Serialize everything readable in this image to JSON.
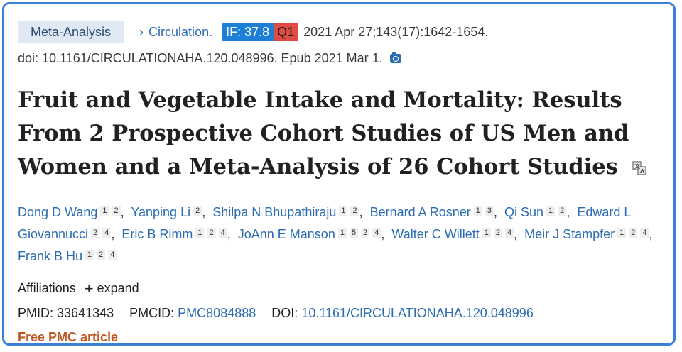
{
  "header": {
    "article_type": "Meta-Analysis",
    "journal": "Circulation.",
    "impact_factor": "IF: 37.8",
    "quartile": "Q1",
    "citation": "2021 Apr 27;143(17):1642-1654.",
    "doi_line": "doi: 10.1161/CIRCULATIONAHA.120.048996. Epub 2021 Mar 1.",
    "camera_icon": "camera-icon",
    "accent": "#2b6cb3",
    "if_color": "#1e7fd6",
    "q_color": "#e04b44"
  },
  "title": "Fruit and Vegetable Intake and Mortality: Results From 2 Prospective Cohort Studies of US Men and Women and a Meta-Analysis of 26 Cohort Studies",
  "translate_icon": "translate-icon",
  "authors": [
    {
      "name": "Dong D Wang",
      "affs": [
        "1",
        "2"
      ]
    },
    {
      "name": "Yanping Li",
      "affs": [
        "2"
      ]
    },
    {
      "name": "Shilpa N Bhupathiraju",
      "affs": [
        "1",
        "2"
      ]
    },
    {
      "name": "Bernard A Rosner",
      "affs": [
        "1",
        "3"
      ]
    },
    {
      "name": "Qi Sun",
      "affs": [
        "1",
        "2"
      ]
    },
    {
      "name": "Edward L Giovannucci",
      "affs": [
        "2",
        "4"
      ]
    },
    {
      "name": "Eric B Rimm",
      "affs": [
        "1",
        "2",
        "4"
      ]
    },
    {
      "name": "JoAnn E Manson",
      "affs": [
        "1",
        "5",
        "2",
        "4"
      ]
    },
    {
      "name": "Walter C Willett",
      "affs": [
        "1",
        "2",
        "4"
      ]
    },
    {
      "name": "Meir J Stampfer",
      "affs": [
        "1",
        "2",
        "4"
      ]
    },
    {
      "name": "Frank B Hu",
      "affs": [
        "1",
        "2",
        "4"
      ]
    }
  ],
  "affiliations": {
    "label": "Affiliations",
    "plus": "+",
    "expand": "expand"
  },
  "ids": {
    "pmid_label": "PMID:",
    "pmid": "33641343",
    "pmcid_label": "PMCID:",
    "pmcid": "PMC8084888",
    "doi_label": "DOI:",
    "doi": "10.1161/CIRCULATIONAHA.120.048996"
  },
  "free_article": "Free PMC article",
  "free_color": "#c05621"
}
